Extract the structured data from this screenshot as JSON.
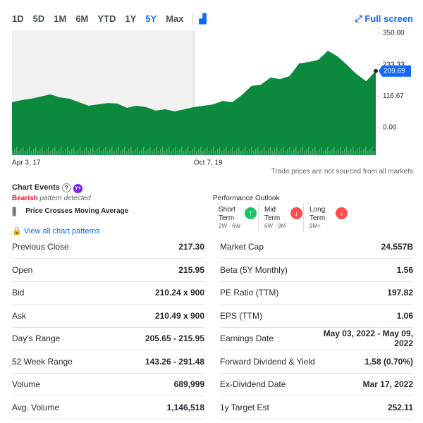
{
  "range_tabs": [
    {
      "label": "1D"
    },
    {
      "label": "5D"
    },
    {
      "label": "1M"
    },
    {
      "label": "6M"
    },
    {
      "label": "YTD"
    },
    {
      "label": "1Y"
    },
    {
      "label": "5Y",
      "active": true
    },
    {
      "label": "Max"
    }
  ],
  "full_screen": "Full screen",
  "chart_data": {
    "type": "area",
    "color": "#0b8a3e",
    "categories": [
      "Apr 3, 17",
      null,
      null,
      null,
      null,
      null,
      null,
      null,
      null,
      null,
      null,
      null,
      null,
      null,
      null,
      null,
      null,
      null,
      null,
      "Oct 7, 19",
      null,
      null,
      null,
      null,
      null,
      null,
      null,
      null,
      null,
      null,
      null,
      null,
      null,
      null,
      null,
      null,
      null,
      null,
      null
    ],
    "values": [
      94,
      102,
      107,
      115,
      123,
      112,
      107,
      94,
      81,
      86,
      91,
      89,
      73,
      81,
      76,
      63,
      68,
      60,
      68,
      76,
      81,
      86,
      99,
      94,
      120,
      154,
      159,
      185,
      180,
      191,
      238,
      243,
      251,
      285,
      264,
      232,
      198,
      172,
      209.69
    ],
    "ylim": [
      0,
      350
    ],
    "yticks": [
      {
        "value": 0,
        "label": "0.00"
      },
      {
        "value": 116.67,
        "label": "116.67"
      },
      {
        "value": 233.33,
        "label": "233.33"
      },
      {
        "value": 350,
        "label": "350.00"
      }
    ],
    "current_value": 209.69
  },
  "note": "Trade prices are not sourced from all markets",
  "chart_events": {
    "title": "Chart Events",
    "pattern_type": "Bearish",
    "pattern_text": "pattern detected",
    "pattern_name": "Price Crosses Moving Average",
    "link": "View all chart patterns"
  },
  "performance_outlook": {
    "title": "Performance Outlook",
    "items": [
      {
        "term": "Short Term",
        "range": "2W - 6W",
        "direction": "up"
      },
      {
        "term": "Mid Term",
        "range": "6W - 9M",
        "direction": "down"
      },
      {
        "term": "Long Term",
        "range": "9M+",
        "direction": "down"
      }
    ]
  },
  "stats": {
    "left": [
      [
        "Previous Close",
        "217.30"
      ],
      [
        "Open",
        "215.95"
      ],
      [
        "Bid",
        "210.24 x 900"
      ],
      [
        "Ask",
        "210.49 x 900"
      ],
      [
        "Day's Range",
        "205.65 - 215.95"
      ],
      [
        "52 Week Range",
        "143.26 - 291.48"
      ],
      [
        "Volume",
        "689,999"
      ],
      [
        "Avg. Volume",
        "1,146,518"
      ]
    ],
    "right": [
      [
        "Market Cap",
        "24.557B"
      ],
      [
        "Beta (5Y Monthly)",
        "1.56"
      ],
      [
        "PE Ratio (TTM)",
        "197.82"
      ],
      [
        "EPS (TTM)",
        "1.06"
      ],
      [
        "Earnings Date",
        "May 03, 2022 - May 09, 2022"
      ],
      [
        "Forward Dividend & Yield",
        "1.58 (0.70%)"
      ],
      [
        "Ex-Dividend Date",
        "Mar 17, 2022"
      ],
      [
        "1y Target Est",
        "252.11"
      ]
    ]
  }
}
